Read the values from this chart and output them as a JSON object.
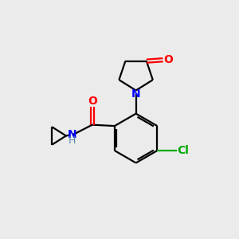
{
  "background_color": "#ebebeb",
  "bond_color": "#000000",
  "atom_colors": {
    "O": "#ff0000",
    "N": "#0000ff",
    "Cl": "#00aa00",
    "H": "#5588aa",
    "C": "#000000"
  },
  "figsize": [
    3.0,
    3.0
  ],
  "dpi": 100
}
